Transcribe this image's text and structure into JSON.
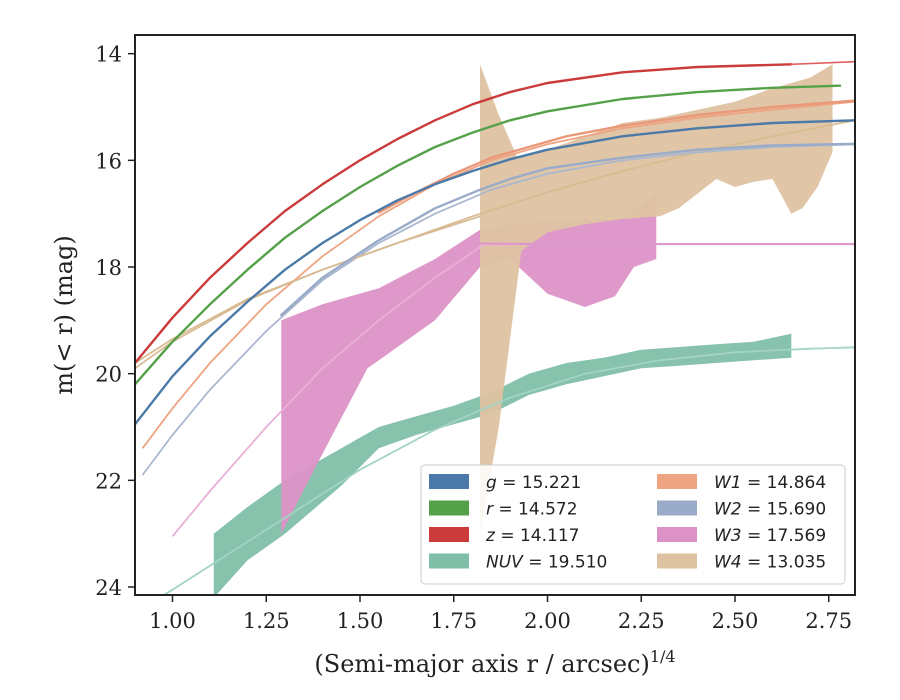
{
  "chart_data": {
    "type": "line",
    "xlabel": "(Semi-major axis r / arcsec)",
    "xlabel_sup": "1/4",
    "ylabel": "m(< r) (mag)",
    "xlim": [
      0.9,
      2.82
    ],
    "ylim": [
      24.15,
      13.65
    ],
    "y_inverted": true,
    "grid": false,
    "legend_position": "lower-right",
    "xticks": [
      1.0,
      1.25,
      1.5,
      1.75,
      2.0,
      2.25,
      2.5,
      2.75
    ],
    "xtick_labels": [
      "1.00",
      "1.25",
      "1.50",
      "1.75",
      "2.00",
      "2.25",
      "2.50",
      "2.75"
    ],
    "yticks": [
      14,
      16,
      18,
      20,
      22,
      24
    ],
    "ytick_labels": [
      "14",
      "16",
      "18",
      "20",
      "22",
      "24"
    ],
    "model_curves": [
      {
        "band": "W4",
        "color": "#d9bc92",
        "points": [
          [
            0.9,
            19.8
          ],
          [
            1.0,
            19.35
          ],
          [
            1.2,
            18.6
          ],
          [
            1.4,
            18.05
          ],
          [
            1.6,
            17.55
          ],
          [
            1.8,
            17.05
          ],
          [
            2.0,
            16.6
          ],
          [
            2.2,
            16.2
          ],
          [
            2.4,
            15.85
          ],
          [
            2.6,
            15.55
          ],
          [
            2.82,
            15.25
          ]
        ]
      },
      {
        "band": "W1",
        "color": "#eea482",
        "points": [
          [
            0.92,
            21.4
          ],
          [
            1.0,
            20.65
          ],
          [
            1.1,
            19.8
          ],
          [
            1.25,
            18.7
          ],
          [
            1.4,
            17.8
          ],
          [
            1.55,
            17.05
          ],
          [
            1.7,
            16.45
          ],
          [
            1.85,
            16.0
          ],
          [
            2.0,
            15.7
          ],
          [
            2.2,
            15.4
          ],
          [
            2.4,
            15.2
          ],
          [
            2.6,
            15.05
          ],
          [
            2.82,
            14.9
          ]
        ]
      },
      {
        "band": "W2",
        "color": "#aab8cf",
        "points": [
          [
            0.92,
            21.9
          ],
          [
            1.0,
            21.15
          ],
          [
            1.1,
            20.3
          ],
          [
            1.25,
            19.2
          ],
          [
            1.4,
            18.25
          ],
          [
            1.55,
            17.55
          ],
          [
            1.7,
            17.0
          ],
          [
            1.85,
            16.55
          ],
          [
            2.0,
            16.25
          ],
          [
            2.2,
            16.0
          ],
          [
            2.4,
            15.85
          ],
          [
            2.6,
            15.75
          ],
          [
            2.82,
            15.7
          ]
        ]
      },
      {
        "band": "W3",
        "color": "#e8b0d6",
        "points": [
          [
            1.0,
            23.05
          ],
          [
            1.1,
            22.2
          ],
          [
            1.25,
            21.0
          ],
          [
            1.4,
            19.9
          ],
          [
            1.55,
            19.0
          ],
          [
            1.7,
            18.2
          ],
          [
            1.83,
            17.58
          ],
          [
            2.0,
            17.57
          ],
          [
            2.5,
            17.57
          ],
          [
            2.82,
            17.57
          ]
        ]
      },
      {
        "band": "NUV",
        "color": "#a3d4c3",
        "points": [
          [
            0.92,
            24.4
          ],
          [
            1.0,
            24.05
          ],
          [
            1.1,
            23.6
          ],
          [
            1.3,
            22.7
          ],
          [
            1.5,
            21.8
          ],
          [
            1.7,
            21.05
          ],
          [
            1.9,
            20.45
          ],
          [
            2.1,
            20.0
          ],
          [
            2.3,
            19.75
          ],
          [
            2.5,
            19.6
          ],
          [
            2.7,
            19.53
          ],
          [
            2.82,
            19.51
          ]
        ]
      }
    ],
    "shaded_bands": [
      {
        "band": "NUV",
        "color": "#7fbfa8",
        "upper": [
          [
            1.11,
            23.0
          ],
          [
            1.2,
            22.5
          ],
          [
            1.3,
            22.0
          ],
          [
            1.45,
            21.4
          ],
          [
            1.55,
            21.0
          ],
          [
            1.65,
            20.8
          ],
          [
            1.75,
            20.6
          ],
          [
            1.85,
            20.35
          ],
          [
            1.95,
            20.0
          ],
          [
            2.05,
            19.8
          ],
          [
            2.15,
            19.7
          ],
          [
            2.25,
            19.55
          ],
          [
            2.35,
            19.5
          ],
          [
            2.45,
            19.45
          ],
          [
            2.55,
            19.4
          ],
          [
            2.65,
            19.25
          ]
        ],
        "lower": [
          [
            1.11,
            24.2
          ],
          [
            1.2,
            23.5
          ],
          [
            1.3,
            23.0
          ],
          [
            1.45,
            22.1
          ],
          [
            1.55,
            21.4
          ],
          [
            1.65,
            21.15
          ],
          [
            1.75,
            20.95
          ],
          [
            1.85,
            20.75
          ],
          [
            1.95,
            20.4
          ],
          [
            2.05,
            20.2
          ],
          [
            2.15,
            20.05
          ],
          [
            2.25,
            19.9
          ],
          [
            2.35,
            19.85
          ],
          [
            2.45,
            19.8
          ],
          [
            2.55,
            19.75
          ],
          [
            2.65,
            19.7
          ]
        ]
      },
      {
        "band": "W3",
        "color": "#dd92c7",
        "upper": [
          [
            1.29,
            19.0
          ],
          [
            1.4,
            18.7
          ],
          [
            1.55,
            18.4
          ],
          [
            1.7,
            17.85
          ],
          [
            1.82,
            17.3
          ],
          [
            1.9,
            17.2
          ],
          [
            2.0,
            17.15
          ],
          [
            2.1,
            17.1
          ],
          [
            2.2,
            17.1
          ],
          [
            2.29,
            16.6
          ]
        ],
        "lower": [
          [
            1.29,
            23.0
          ],
          [
            1.4,
            21.5
          ],
          [
            1.52,
            19.9
          ],
          [
            1.6,
            19.5
          ],
          [
            1.7,
            19.0
          ],
          [
            1.82,
            18.0
          ],
          [
            1.9,
            17.85
          ],
          [
            2.0,
            18.5
          ],
          [
            2.1,
            18.75
          ],
          [
            2.18,
            18.55
          ],
          [
            2.23,
            18.0
          ],
          [
            2.29,
            17.85
          ]
        ]
      },
      {
        "band": "W4",
        "color": "#dec3a2",
        "upper": [
          [
            1.82,
            14.2
          ],
          [
            1.87,
            15.15
          ],
          [
            1.92,
            15.95
          ],
          [
            2.0,
            15.8
          ],
          [
            2.1,
            15.55
          ],
          [
            2.2,
            15.3
          ],
          [
            2.3,
            15.2
          ],
          [
            2.4,
            15.05
          ],
          [
            2.5,
            14.9
          ],
          [
            2.6,
            14.65
          ],
          [
            2.7,
            14.45
          ],
          [
            2.76,
            14.2
          ]
        ],
        "lower": [
          [
            1.82,
            23.0
          ],
          [
            1.87,
            21.0
          ],
          [
            1.93,
            17.7
          ],
          [
            2.0,
            17.35
          ],
          [
            2.1,
            17.2
          ],
          [
            2.2,
            17.1
          ],
          [
            2.3,
            17.05
          ],
          [
            2.35,
            16.9
          ],
          [
            2.45,
            16.35
          ],
          [
            2.5,
            16.5
          ],
          [
            2.55,
            16.4
          ],
          [
            2.6,
            16.35
          ],
          [
            2.65,
            17.0
          ],
          [
            2.68,
            16.9
          ],
          [
            2.72,
            16.5
          ],
          [
            2.76,
            15.85
          ]
        ]
      }
    ],
    "series": [
      {
        "band": "W4",
        "color": "#d8ba94",
        "width": 1.8,
        "points": [
          [
            0.9,
            19.9
          ],
          [
            1.0,
            19.4
          ],
          [
            1.2,
            18.62
          ],
          [
            1.4,
            18.05
          ],
          [
            1.6,
            17.55
          ],
          [
            1.82,
            17.05
          ]
        ]
      },
      {
        "band": "W1",
        "color": "#e9997a",
        "width": 2.4,
        "points": [
          [
            1.55,
            16.98
          ],
          [
            1.65,
            16.6
          ],
          [
            1.75,
            16.25
          ],
          [
            1.85,
            15.95
          ],
          [
            1.95,
            15.75
          ],
          [
            2.05,
            15.55
          ],
          [
            2.2,
            15.35
          ],
          [
            2.4,
            15.15
          ],
          [
            2.6,
            15.0
          ],
          [
            2.82,
            14.88
          ]
        ]
      },
      {
        "band": "W2",
        "color": "#9aabc9",
        "width": 2.4,
        "points": [
          [
            1.29,
            18.9
          ],
          [
            1.4,
            18.2
          ],
          [
            1.55,
            17.5
          ],
          [
            1.7,
            16.9
          ],
          [
            1.82,
            16.55
          ],
          [
            1.9,
            16.35
          ],
          [
            2.0,
            16.15
          ],
          [
            2.2,
            15.95
          ],
          [
            2.4,
            15.8
          ],
          [
            2.6,
            15.72
          ],
          [
            2.82,
            15.69
          ]
        ]
      },
      {
        "band": "W3",
        "color": "#dc96c9",
        "width": 2.0,
        "points": [
          [
            1.82,
            17.56
          ],
          [
            2.0,
            17.57
          ],
          [
            2.4,
            17.57
          ],
          [
            2.82,
            17.57
          ]
        ]
      },
      {
        "band": "g",
        "color": "#4c7aa8",
        "width": 2.4,
        "points": [
          [
            0.9,
            20.95
          ],
          [
            1.0,
            20.05
          ],
          [
            1.1,
            19.3
          ],
          [
            1.2,
            18.65
          ],
          [
            1.3,
            18.05
          ],
          [
            1.4,
            17.55
          ],
          [
            1.5,
            17.12
          ],
          [
            1.6,
            16.75
          ],
          [
            1.7,
            16.45
          ],
          [
            1.8,
            16.2
          ],
          [
            1.9,
            15.98
          ],
          [
            2.0,
            15.8
          ],
          [
            2.2,
            15.55
          ],
          [
            2.4,
            15.4
          ],
          [
            2.6,
            15.3
          ],
          [
            2.82,
            15.25
          ]
        ]
      },
      {
        "band": "r",
        "color": "#55a14a",
        "width": 2.4,
        "points": [
          [
            0.9,
            20.2
          ],
          [
            1.0,
            19.4
          ],
          [
            1.1,
            18.7
          ],
          [
            1.2,
            18.05
          ],
          [
            1.3,
            17.45
          ],
          [
            1.4,
            16.95
          ],
          [
            1.5,
            16.5
          ],
          [
            1.6,
            16.1
          ],
          [
            1.7,
            15.75
          ],
          [
            1.8,
            15.48
          ],
          [
            1.9,
            15.25
          ],
          [
            2.0,
            15.08
          ],
          [
            2.2,
            14.85
          ],
          [
            2.4,
            14.72
          ],
          [
            2.6,
            14.64
          ],
          [
            2.78,
            14.6
          ]
        ]
      },
      {
        "band": "z",
        "color": "#cc3b3b",
        "width": 2.4,
        "points": [
          [
            0.9,
            19.8
          ],
          [
            1.0,
            18.95
          ],
          [
            1.1,
            18.2
          ],
          [
            1.2,
            17.55
          ],
          [
            1.3,
            16.95
          ],
          [
            1.4,
            16.45
          ],
          [
            1.5,
            16.0
          ],
          [
            1.6,
            15.6
          ],
          [
            1.7,
            15.25
          ],
          [
            1.8,
            14.95
          ],
          [
            1.9,
            14.72
          ],
          [
            2.0,
            14.55
          ],
          [
            2.2,
            14.35
          ],
          [
            2.4,
            14.25
          ],
          [
            2.65,
            14.2
          ]
        ]
      },
      {
        "band": "z",
        "color": "#e06060",
        "width": 1.6,
        "points": [
          [
            2.65,
            14.2
          ],
          [
            2.82,
            14.15
          ]
        ]
      },
      {
        "band": "NUV",
        "color": "#a9d6c6",
        "width": 1.6,
        "points": [
          [
            2.65,
            19.55
          ],
          [
            2.82,
            19.5
          ]
        ]
      }
    ],
    "legend": {
      "columns": 2,
      "entries": [
        {
          "name": "g",
          "value": "15.221",
          "color": "#4c7aa8"
        },
        {
          "name": "r",
          "value": "14.572",
          "color": "#55a14a"
        },
        {
          "name": "z",
          "value": "14.117",
          "color": "#cc3b3b"
        },
        {
          "name": "NUV",
          "value": "19.510",
          "color": "#7fbfa8"
        },
        {
          "name": "W1",
          "value": "14.864",
          "color": "#eea482"
        },
        {
          "name": "W2",
          "value": "15.690",
          "color": "#9aabc9"
        },
        {
          "name": "W3",
          "value": "17.569",
          "color": "#dd92c7"
        },
        {
          "name": "W4",
          "value": "13.035",
          "color": "#dec3a2"
        }
      ]
    }
  }
}
